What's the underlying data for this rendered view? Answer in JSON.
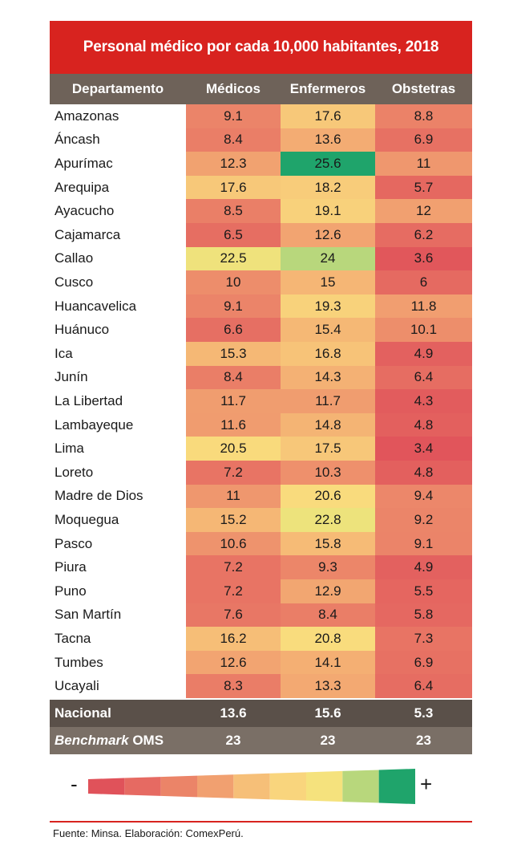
{
  "title": "Personal médico por cada 10,000 habitantes, 2018",
  "headers": {
    "departamento": "Departamento",
    "medicos": "Médicos",
    "enfermeros": "Enfermeros",
    "obstetras": "Obstetras"
  },
  "chart_data": {
    "type": "heatmap",
    "title": "Personal médico por cada 10,000 habitantes, 2018",
    "columns": [
      "Médicos",
      "Enfermeros",
      "Obstetras"
    ],
    "rows": [
      {
        "departamento": "Amazonas",
        "values": [
          9.1,
          17.6,
          8.8
        ]
      },
      {
        "departamento": "Áncash",
        "values": [
          8.4,
          13.6,
          6.9
        ]
      },
      {
        "departamento": "Apurímac",
        "values": [
          12.3,
          25.6,
          11
        ]
      },
      {
        "departamento": "Arequipa",
        "values": [
          17.6,
          18.2,
          5.7
        ]
      },
      {
        "departamento": "Ayacucho",
        "values": [
          8.5,
          19.1,
          12
        ]
      },
      {
        "departamento": "Cajamarca",
        "values": [
          6.5,
          12.6,
          6.2
        ]
      },
      {
        "departamento": "Callao",
        "values": [
          22.5,
          24,
          3.6
        ]
      },
      {
        "departamento": "Cusco",
        "values": [
          10,
          15,
          6
        ]
      },
      {
        "departamento": "Huancavelica",
        "values": [
          9.1,
          19.3,
          11.8
        ]
      },
      {
        "departamento": "Huánuco",
        "values": [
          6.6,
          15.4,
          10.1
        ]
      },
      {
        "departamento": "Ica",
        "values": [
          15.3,
          16.8,
          4.9
        ]
      },
      {
        "departamento": "Junín",
        "values": [
          8.4,
          14.3,
          6.4
        ]
      },
      {
        "departamento": "La Libertad",
        "values": [
          11.7,
          11.7,
          4.3
        ]
      },
      {
        "departamento": "Lambayeque",
        "values": [
          11.6,
          14.8,
          4.8
        ]
      },
      {
        "departamento": "Lima",
        "values": [
          20.5,
          17.5,
          3.4
        ]
      },
      {
        "departamento": "Loreto",
        "values": [
          7.2,
          10.3,
          4.8
        ]
      },
      {
        "departamento": "Madre de Dios",
        "values": [
          11,
          20.6,
          9.4
        ]
      },
      {
        "departamento": "Moquegua",
        "values": [
          15.2,
          22.8,
          9.2
        ]
      },
      {
        "departamento": "Pasco",
        "values": [
          10.6,
          15.8,
          9.1
        ]
      },
      {
        "departamento": "Piura",
        "values": [
          7.2,
          9.3,
          4.9
        ]
      },
      {
        "departamento": "Puno",
        "values": [
          7.2,
          12.9,
          5.5
        ]
      },
      {
        "departamento": "San Martín",
        "values": [
          7.6,
          8.4,
          5.8
        ]
      },
      {
        "departamento": "Tacna",
        "values": [
          16.2,
          20.8,
          7.3
        ]
      },
      {
        "departamento": "Tumbes",
        "values": [
          12.6,
          14.1,
          6.9
        ]
      },
      {
        "departamento": "Ucayali",
        "values": [
          8.3,
          13.3,
          6.4
        ]
      }
    ],
    "nacional": {
      "label": "Nacional",
      "values": [
        13.6,
        15.6,
        5.3
      ]
    },
    "benchmark": {
      "label_italic": "Benchmark",
      "label_rest": " OMS",
      "values": [
        23,
        23,
        23
      ]
    },
    "color_scale": {
      "min_label": "-",
      "max_label": "+",
      "colors": [
        "#e0525a",
        "#e66a62",
        "#eb8468",
        "#f1a070",
        "#f6bf78",
        "#f9d57d",
        "#f5e27d",
        "#b8d77c",
        "#1fa46b"
      ],
      "domain": [
        3,
        26
      ]
    }
  },
  "source": "Fuente: Minsa. Elaboración: ComexPerú.",
  "colors": {
    "title_bg": "#d8231f",
    "header_bg": "#6e6259",
    "nacional_bg": "#5a5049",
    "benchmark_bg": "#7a6f66"
  }
}
